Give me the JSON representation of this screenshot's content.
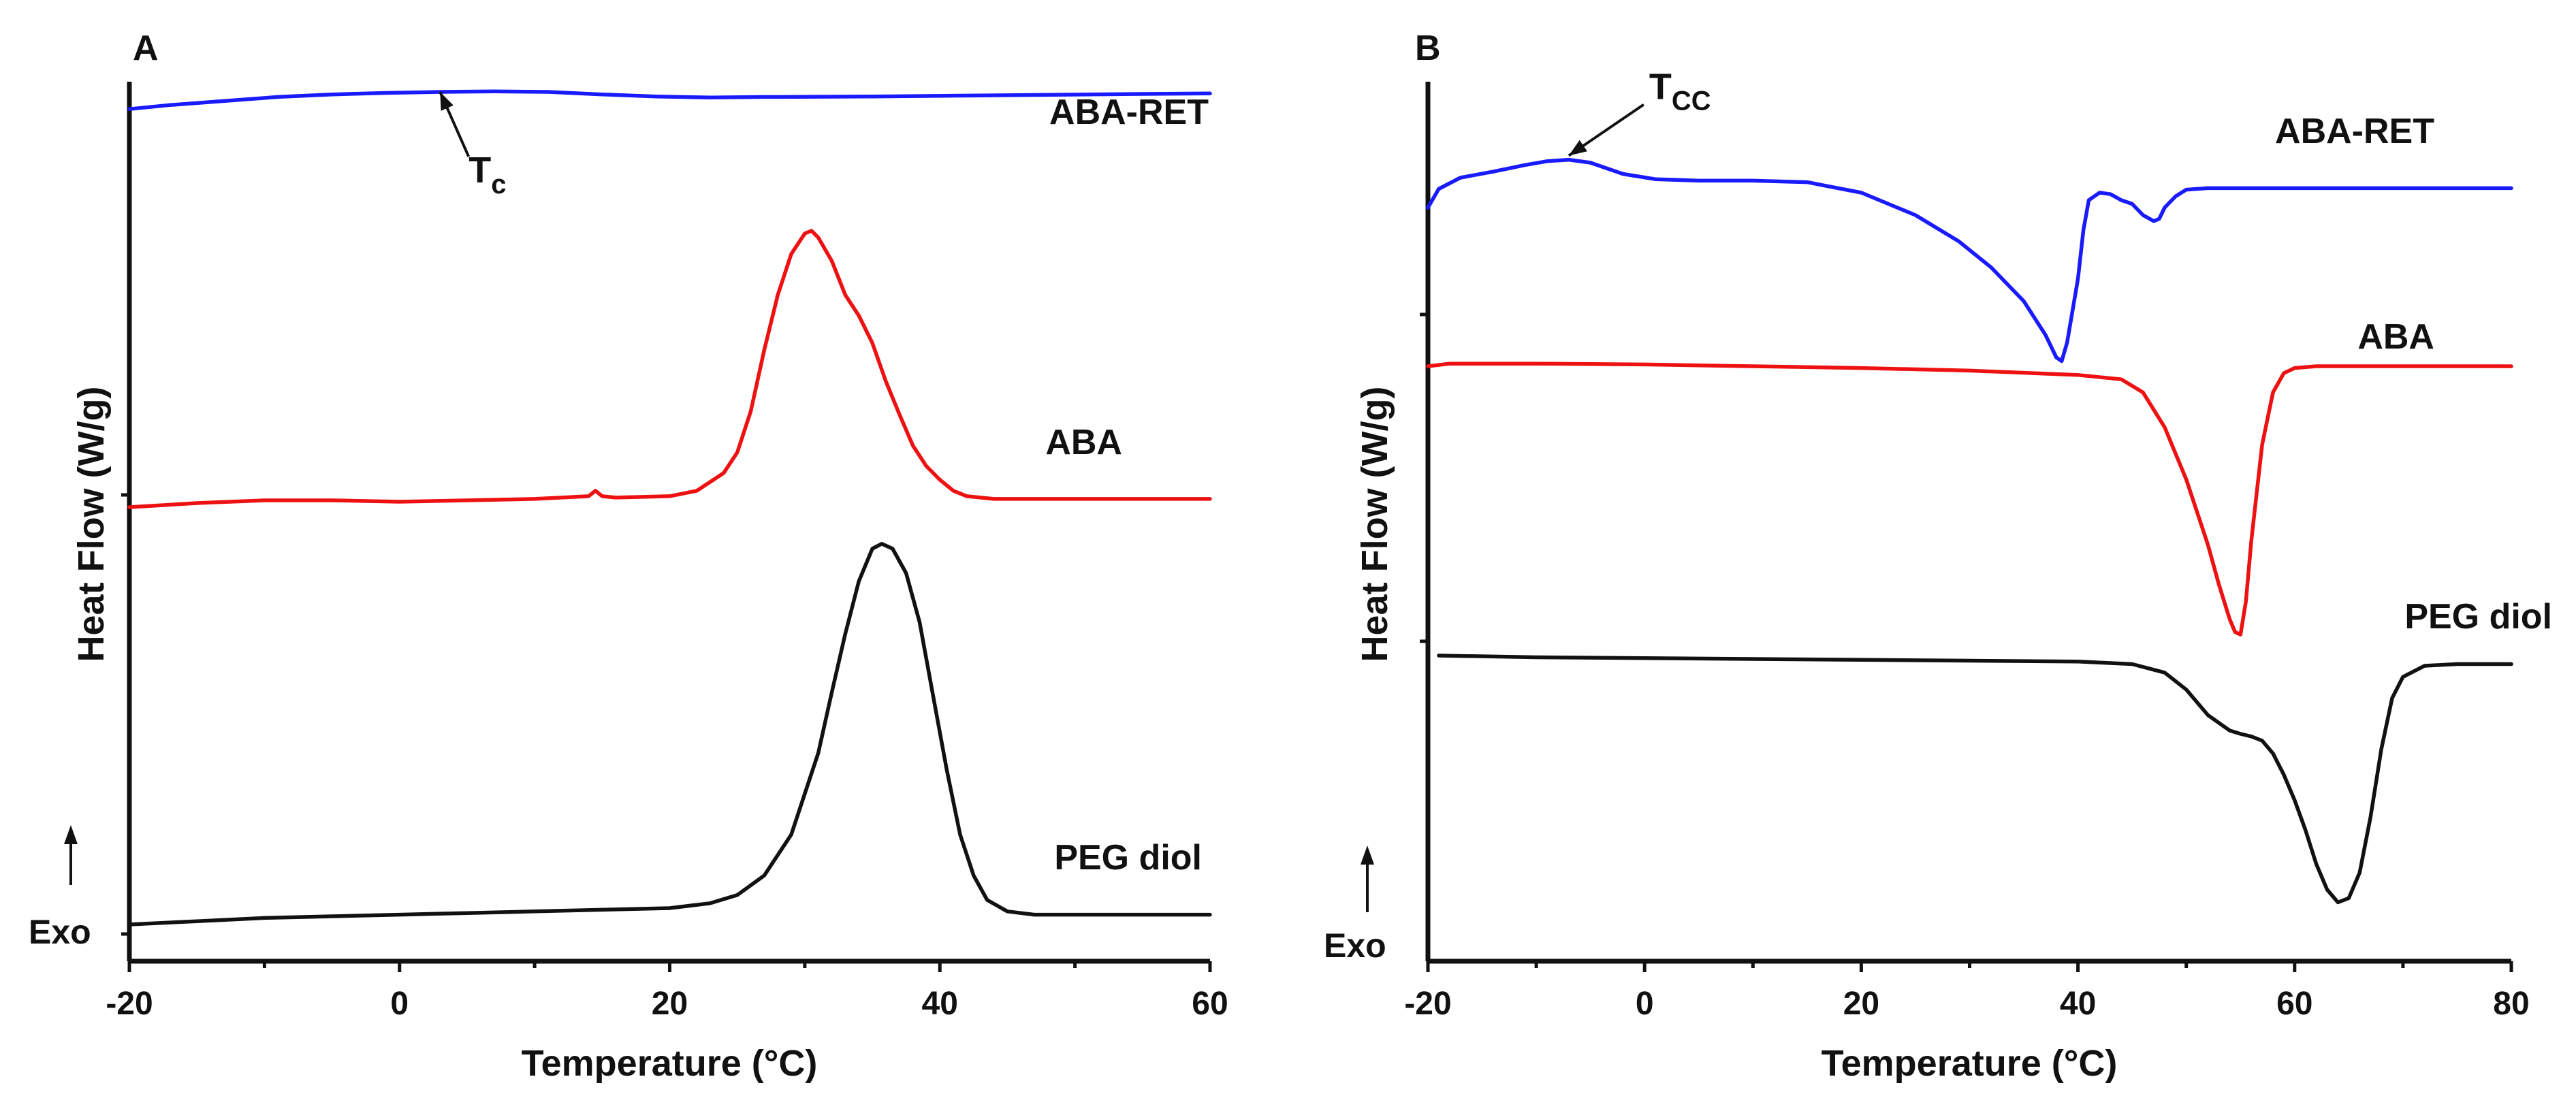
{
  "chart_data": [
    {
      "panel": "A",
      "type": "line",
      "xlabel": "Temperature (°C)",
      "ylabel": "Heat Flow (W/g)",
      "xlim": [
        -20,
        60
      ],
      "xticks": [
        -20,
        0,
        20,
        40,
        60
      ],
      "exo_label": "Exo",
      "series": [
        {
          "name": "ABA-RET",
          "color": "#1a1aff",
          "x": [
            -20,
            -17,
            -13,
            -9,
            -5,
            -1,
            3,
            7,
            11,
            15,
            19,
            23,
            27,
            31,
            35,
            39,
            43,
            47,
            51,
            55,
            60
          ],
          "y": [
            1.7,
            1.78,
            1.86,
            1.94,
            1.99,
            2.02,
            2.04,
            2.05,
            2.04,
            1.99,
            1.95,
            1.93,
            1.94,
            1.945,
            1.95,
            1.96,
            1.97,
            1.98,
            1.99,
            2.0,
            2.01
          ]
        },
        {
          "name": "ABA",
          "color": "#ee1111",
          "x": [
            -20,
            -15,
            -10,
            -5,
            0,
            5,
            10,
            14,
            14.5,
            15,
            16,
            20,
            22,
            24,
            25,
            26,
            27,
            28,
            29,
            30,
            30.5,
            31,
            32,
            33,
            34,
            35,
            36,
            37,
            38,
            39,
            40,
            41,
            42,
            44,
            46,
            50,
            55,
            60
          ],
          "y": [
            0,
            0.03,
            0.05,
            0.05,
            0.04,
            0.05,
            0.06,
            0.08,
            0.12,
            0.08,
            0.07,
            0.08,
            0.12,
            0.25,
            0.4,
            0.7,
            1.15,
            1.55,
            1.85,
            2.0,
            2.02,
            1.97,
            1.8,
            1.55,
            1.4,
            1.2,
            0.92,
            0.68,
            0.45,
            0.3,
            0.2,
            0.12,
            0.08,
            0.06,
            0.06,
            0.06,
            0.06,
            0.06
          ]
        },
        {
          "name": "PEG diol",
          "color": "#111111",
          "x": [
            -20,
            -15,
            -10,
            -5,
            0,
            5,
            10,
            15,
            20,
            23,
            25,
            27,
            29,
            31,
            32,
            33,
            34,
            35,
            35.7,
            36.5,
            37.5,
            38.5,
            39.5,
            40.5,
            41.5,
            42.5,
            43.5,
            45,
            47,
            50,
            55,
            60
          ],
          "y": [
            0,
            0.02,
            0.04,
            0.05,
            0.06,
            0.07,
            0.08,
            0.09,
            0.1,
            0.13,
            0.18,
            0.3,
            0.55,
            1.05,
            1.42,
            1.78,
            2.1,
            2.3,
            2.33,
            2.3,
            2.15,
            1.85,
            1.4,
            0.95,
            0.55,
            0.3,
            0.15,
            0.08,
            0.06,
            0.06,
            0.06,
            0.06
          ]
        }
      ],
      "annotations": [
        {
          "label": "T",
          "subscript": "c",
          "series": "ABA-RET",
          "x": 3
        }
      ]
    },
    {
      "panel": "B",
      "type": "line",
      "xlabel": "Temperature (°C)",
      "ylabel": "Heat Flow (W/g)",
      "xlim": [
        -20,
        80
      ],
      "xticks": [
        -20,
        0,
        20,
        40,
        60,
        80
      ],
      "exo_label": "Exo",
      "series": [
        {
          "name": "ABA-RET",
          "color": "#1a1aff",
          "x": [
            -20,
            -19,
            -17,
            -14,
            -11,
            -9,
            -7,
            -5,
            -2,
            1,
            5,
            10,
            15,
            20,
            25,
            29,
            32,
            35,
            37,
            38,
            38.5,
            39,
            40,
            40.5,
            41,
            42,
            43,
            44,
            45,
            46,
            47,
            47.5,
            48,
            49,
            50,
            52,
            55,
            60,
            65,
            70,
            80
          ],
          "y": [
            0,
            0.25,
            0.4,
            0.48,
            0.57,
            0.62,
            0.64,
            0.6,
            0.45,
            0.38,
            0.36,
            0.36,
            0.34,
            0.2,
            -0.1,
            -0.45,
            -0.8,
            -1.25,
            -1.7,
            -2.0,
            -2.05,
            -1.8,
            -0.95,
            -0.3,
            0.1,
            0.2,
            0.18,
            0.1,
            0.05,
            -0.1,
            -0.18,
            -0.15,
            0.0,
            0.15,
            0.24,
            0.26,
            0.26,
            0.26,
            0.26,
            0.26,
            0.26
          ]
        },
        {
          "name": "ABA",
          "color": "#ee1111",
          "x": [
            -20,
            -18,
            -10,
            0,
            10,
            20,
            30,
            40,
            44,
            46,
            48,
            50,
            52,
            53,
            54,
            54.5,
            55,
            55.5,
            56,
            57,
            58,
            59,
            60,
            62,
            65,
            70,
            80
          ],
          "y": [
            0,
            0.03,
            0.03,
            0.02,
            0.0,
            -0.02,
            -0.05,
            -0.1,
            -0.15,
            -0.3,
            -0.7,
            -1.3,
            -2.05,
            -2.5,
            -2.9,
            -3.05,
            -3.08,
            -2.7,
            -2.0,
            -0.9,
            -0.3,
            -0.08,
            -0.02,
            0,
            0,
            0,
            0
          ]
        },
        {
          "name": "PEG diol",
          "color": "#111111",
          "x": [
            -19,
            -10,
            0,
            10,
            20,
            30,
            40,
            45,
            48,
            50,
            52,
            54,
            55,
            56,
            57,
            58,
            59,
            60,
            61,
            62,
            63,
            64,
            65,
            66,
            67,
            68,
            69,
            70,
            72,
            75,
            80
          ],
          "y": [
            0,
            -0.02,
            -0.03,
            -0.04,
            -0.05,
            -0.06,
            -0.07,
            -0.1,
            -0.2,
            -0.4,
            -0.7,
            -0.88,
            -0.92,
            -0.95,
            -1.0,
            -1.15,
            -1.4,
            -1.7,
            -2.05,
            -2.45,
            -2.75,
            -2.9,
            -2.85,
            -2.55,
            -1.9,
            -1.1,
            -0.5,
            -0.25,
            -0.12,
            -0.1,
            -0.1
          ]
        }
      ],
      "annotations": [
        {
          "label": "T",
          "subscript": "CC",
          "series": "ABA-RET",
          "x": -7
        }
      ]
    }
  ]
}
